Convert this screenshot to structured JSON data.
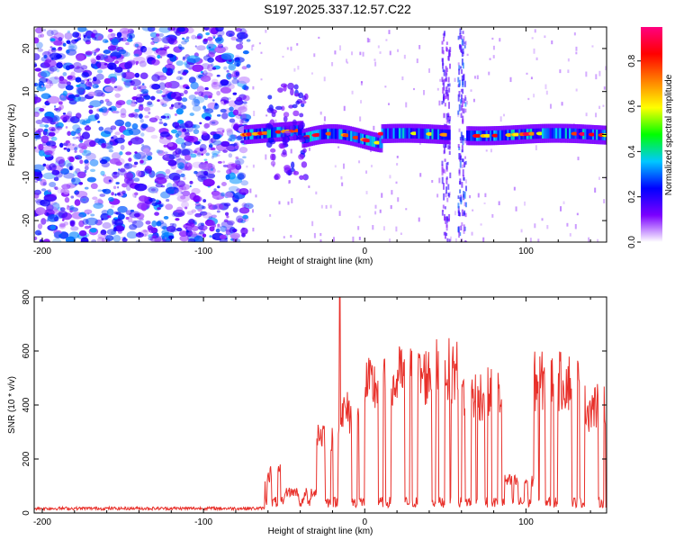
{
  "title": "S197.2025.337.12.57.C22",
  "chart_data": [
    {
      "type": "heatmap",
      "xlabel": "Height of straight line (km)",
      "ylabel": "Frequency (Hz)",
      "xlim": [
        -205,
        150
      ],
      "ylim": [
        -25,
        25
      ],
      "xticks": [
        -200,
        -100,
        0,
        100
      ],
      "yticks": [
        -20,
        -10,
        0,
        10,
        20
      ],
      "colorbar": {
        "label": "Normalized spectral amplitude",
        "range": [
          0,
          0.95
        ],
        "ticks": [
          0,
          0.2,
          0.4,
          0.6,
          0.8
        ],
        "tick_labels": [
          "0.0",
          "0.2",
          "0.4",
          "0.6",
          "0.8"
        ],
        "colors": [
          "#ffffff",
          "#7b00ff",
          "#0000ff",
          "#00c8ff",
          "#00ff00",
          "#ffff00",
          "#ff8000",
          "#ff0000",
          "#ff0080"
        ]
      },
      "features": [
        {
          "name": "noise",
          "x_range": [
            -205,
            -72
          ],
          "freq_range": [
            -25,
            25
          ],
          "amplitude": 0.1
        },
        {
          "name": "signal-line",
          "x_range": [
            -75,
            150
          ],
          "center_freq_hz": 0,
          "amplitude": 0.5
        },
        {
          "name": "vertical-streak",
          "x": 50,
          "amplitude": 0.15
        },
        {
          "name": "vertical-streak",
          "x": 60,
          "amplitude": 0.25
        }
      ]
    },
    {
      "type": "line",
      "xlabel": "Height of straight line (km)",
      "ylabel": "SNR (10 * v/v)",
      "xlim": [
        -205,
        150
      ],
      "ylim": [
        0,
        800
      ],
      "xticks": [
        -200,
        -100,
        0,
        100
      ],
      "yticks": [
        0,
        200,
        400,
        600,
        800
      ],
      "series": [
        {
          "name": "SNR",
          "color": "#e8302a",
          "segments": [
            {
              "x_range": [
                -205,
                -62
              ],
              "level": 15
            },
            {
              "x_range": [
                -62,
                -50
              ],
              "level": 150
            },
            {
              "x_range": [
                -50,
                -30
              ],
              "level": 80
            },
            {
              "x_range": [
                -30,
                -15
              ],
              "level": 300,
              "spike": {
                "x": -15.5,
                "value": 800
              }
            },
            {
              "x_range": [
                -15,
                0
              ],
              "level": 380
            },
            {
              "x_range": [
                0,
                20
              ],
              "level": 480
            },
            {
              "x_range": [
                20,
                40
              ],
              "level": 520
            },
            {
              "x_range": [
                40,
                60
              ],
              "level": 540
            },
            {
              "x_range": [
                60,
                85
              ],
              "level": 450
            },
            {
              "x_range": [
                85,
                105
              ],
              "level": 120
            },
            {
              "x_range": [
                105,
                135
              ],
              "level": 500
            },
            {
              "x_range": [
                135,
                150
              ],
              "level": 400
            }
          ]
        }
      ]
    }
  ]
}
